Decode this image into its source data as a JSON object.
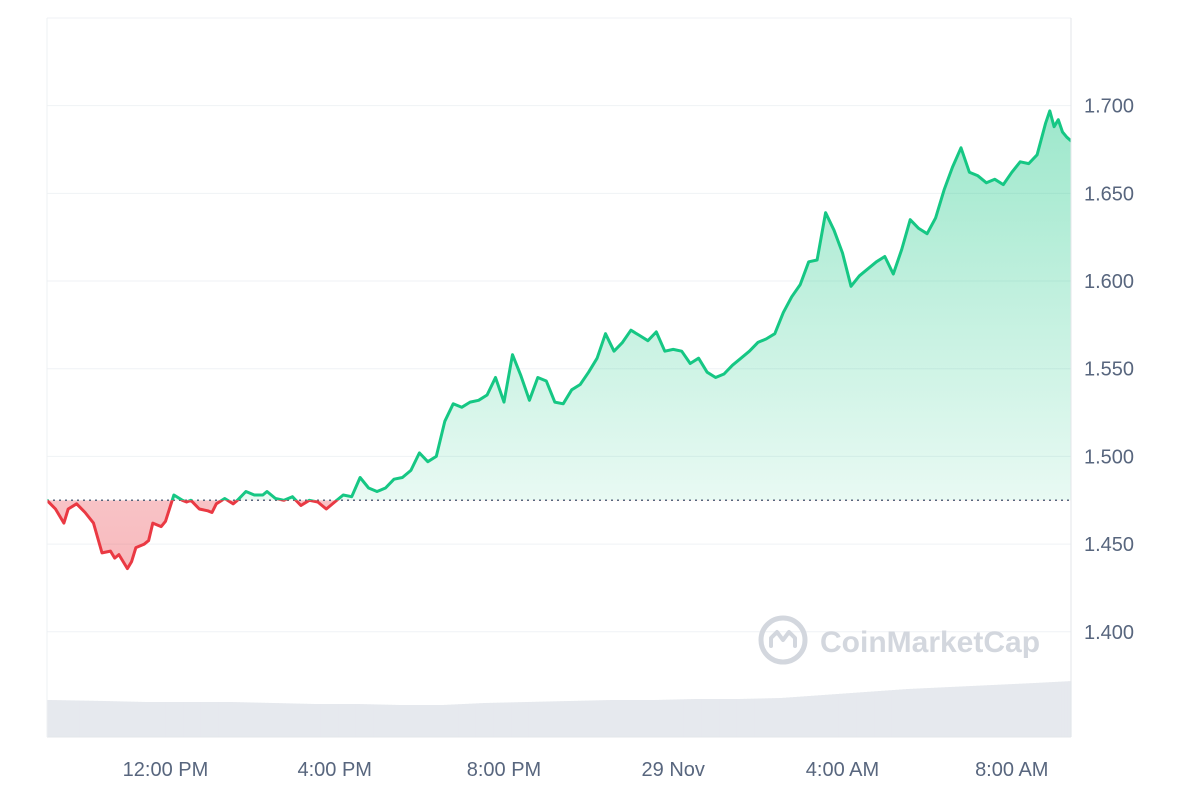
{
  "colors": {
    "up": "#16c784",
    "down": "#ea3943",
    "grid": "#eff2f5",
    "axis_text": "#58667e",
    "volume": "#e6e9ee",
    "watermark": "#d3d7de",
    "baseline": "#58667e"
  },
  "watermark": {
    "text": "CoinMarketCap",
    "icon": "coinmarketcap-logo-icon"
  },
  "chart_data": {
    "type": "area",
    "baseline": 1.475,
    "grid": true,
    "ylim": [
      1.34,
      1.75
    ],
    "y_ticks": [
      1.4,
      1.45,
      1.5,
      1.55,
      1.6,
      1.65,
      1.7
    ],
    "y_tick_labels": [
      "1.400",
      "1.450",
      "1.500",
      "1.550",
      "1.600",
      "1.650",
      "1.700"
    ],
    "x_range_hours": [
      -2.8,
      21.4
    ],
    "x_ticks": [
      0,
      4,
      8,
      12,
      16,
      20
    ],
    "x_tick_labels": [
      "12:00 PM",
      "4:00 PM",
      "8:00 PM",
      "29 Nov",
      "4:00 AM",
      "8:00 AM"
    ],
    "series": [
      {
        "x": [
          -2.8,
          -2.6,
          -2.4,
          -2.3,
          -2.1,
          -1.9,
          -1.7,
          -1.5,
          -1.3,
          -1.2,
          -1.1,
          -0.9,
          -0.8,
          -0.7,
          -0.5,
          -0.4,
          -0.3,
          -0.1,
          0.0,
          0.2,
          0.4,
          0.5,
          0.6,
          0.8,
          1.0,
          1.1,
          1.2,
          1.4,
          1.6,
          1.7,
          1.9,
          2.1,
          2.3,
          2.4,
          2.6,
          2.8,
          3.0,
          3.2,
          3.4,
          3.6,
          3.8,
          4.0,
          4.2,
          4.4,
          4.6,
          4.8,
          5.0,
          5.2,
          5.4,
          5.6,
          5.8,
          6.0,
          6.2,
          6.4,
          6.6,
          6.8,
          7.0,
          7.2,
          7.4,
          7.6,
          7.8,
          8.0,
          8.2,
          8.4,
          8.6,
          8.8,
          9.0,
          9.2,
          9.4,
          9.6,
          9.8,
          10.0,
          10.2,
          10.4,
          10.6,
          10.8,
          11.0,
          11.2,
          11.4,
          11.6,
          11.8,
          12.0,
          12.2,
          12.4,
          12.6,
          12.8,
          13.0,
          13.2,
          13.4,
          13.6,
          13.8,
          14.0,
          14.2,
          14.4,
          14.6,
          14.8,
          15.0,
          15.2,
          15.4,
          15.6,
          15.8,
          16.0,
          16.2,
          16.4,
          16.6,
          16.8,
          17.0,
          17.2,
          17.4,
          17.6,
          17.8,
          18.0,
          18.2,
          18.4,
          18.6,
          18.8,
          19.0,
          19.2,
          19.4,
          19.6,
          19.8,
          20.0,
          20.2,
          20.4,
          20.6,
          20.8,
          20.9,
          21.0,
          21.1,
          21.2,
          21.3,
          21.4
        ],
        "y": [
          1.475,
          1.47,
          1.462,
          1.47,
          1.473,
          1.468,
          1.462,
          1.445,
          1.446,
          1.442,
          1.444,
          1.436,
          1.44,
          1.448,
          1.45,
          1.452,
          1.462,
          1.46,
          1.463,
          1.478,
          1.475,
          1.474,
          1.475,
          1.47,
          1.469,
          1.468,
          1.473,
          1.476,
          1.473,
          1.475,
          1.48,
          1.478,
          1.478,
          1.48,
          1.476,
          1.475,
          1.477,
          1.472,
          1.475,
          1.474,
          1.47,
          1.474,
          1.478,
          1.477,
          1.488,
          1.482,
          1.48,
          1.482,
          1.487,
          1.488,
          1.492,
          1.502,
          1.497,
          1.5,
          1.52,
          1.53,
          1.528,
          1.531,
          1.532,
          1.535,
          1.545,
          1.531,
          1.558,
          1.546,
          1.532,
          1.545,
          1.543,
          1.531,
          1.53,
          1.538,
          1.541,
          1.548,
          1.556,
          1.57,
          1.56,
          1.565,
          1.572,
          1.569,
          1.566,
          1.571,
          1.56,
          1.561,
          1.56,
          1.553,
          1.556,
          1.548,
          1.545,
          1.547,
          1.552,
          1.556,
          1.56,
          1.565,
          1.567,
          1.57,
          1.582,
          1.591,
          1.598,
          1.611,
          1.612,
          1.639,
          1.629,
          1.616,
          1.597,
          1.603,
          1.607,
          1.611,
          1.614,
          1.604,
          1.618,
          1.635,
          1.63,
          1.627,
          1.636,
          1.652,
          1.665,
          1.676,
          1.662,
          1.66,
          1.656,
          1.658,
          1.655,
          1.662,
          1.668,
          1.667,
          1.672,
          1.69,
          1.697,
          1.688,
          1.692,
          1.685,
          1.682,
          1.68
        ]
      }
    ],
    "volume": {
      "x": [
        -2.8,
        -1.5,
        -0.5,
        0.5,
        1.5,
        2.5,
        3.5,
        4.5,
        5.5,
        6.5,
        7.5,
        8.5,
        9.5,
        10.5,
        11.5,
        12.5,
        13.5,
        14.5,
        15.5,
        16.5,
        17.5,
        18.5,
        19.5,
        20.5,
        21.4
      ],
      "v": [
        37,
        36,
        35,
        35,
        35,
        34,
        33,
        33,
        32,
        32,
        34,
        35,
        36,
        37,
        37,
        38,
        38,
        39,
        42,
        45,
        48,
        50,
        52,
        54,
        56
      ]
    }
  }
}
